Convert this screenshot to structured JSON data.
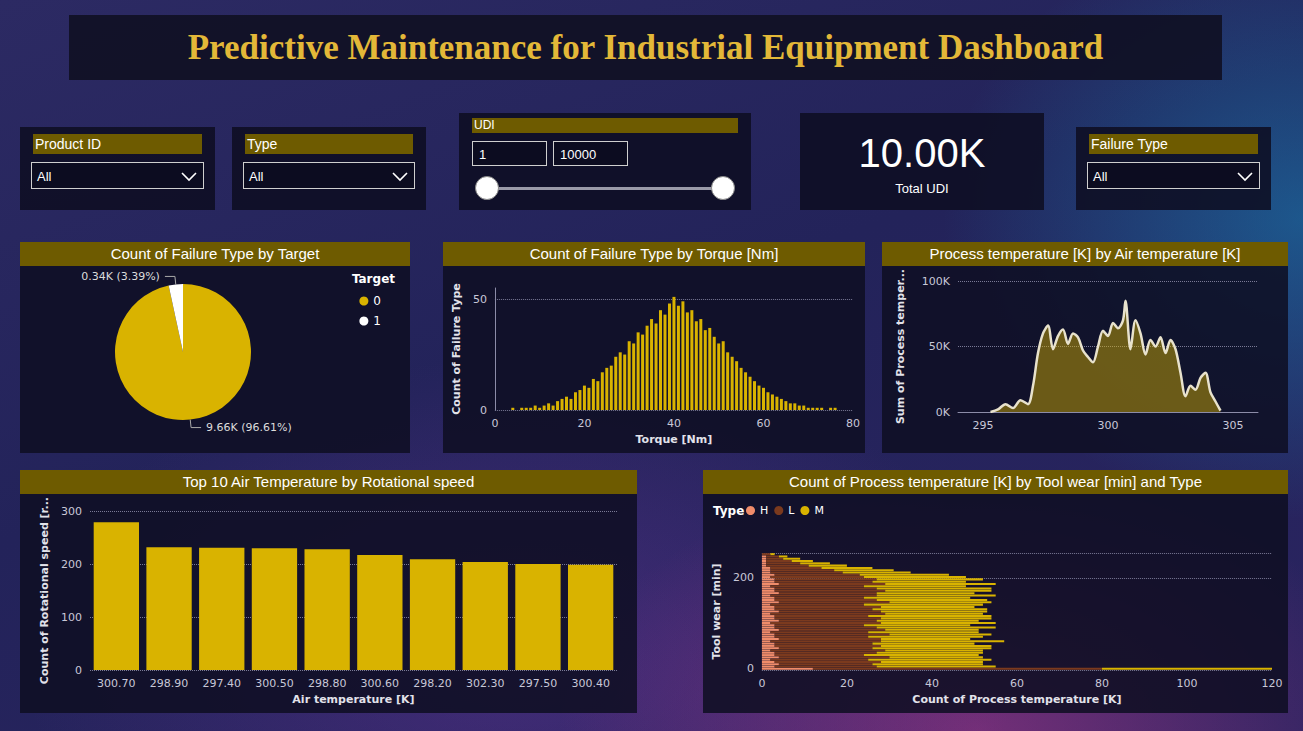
{
  "header": {
    "title": "Predictive Maintenance for Industrial Equipment Dashboard"
  },
  "slicers": [
    {
      "label": "Product ID",
      "value": "All"
    },
    {
      "label": "Type",
      "value": "All"
    },
    {
      "label": "UDI",
      "range": [
        1,
        10000
      ]
    },
    {
      "label": "Failure Type",
      "value": "All"
    }
  ],
  "kpi": {
    "value": "10.00K",
    "label": "Total UDI"
  },
  "chart_data": [
    {
      "type": "pie",
      "title": "Count of Failure Type by Target",
      "legend_title": "Target",
      "legend": "top-right",
      "categories": [
        0,
        1
      ],
      "values": [
        9661,
        339
      ],
      "value_labels": [
        "9.66K (96.61%)",
        "0.34K (3.39%)"
      ],
      "colors": [
        "#d9b300",
        "#ffffff"
      ],
      "data_labels": true
    },
    {
      "type": "bar",
      "title": "Count of Failure Type by Torque [Nm]",
      "xlabel": "Torque [Nm]",
      "ylabel": "Count of Failure Type",
      "x": [
        4,
        5,
        6,
        7,
        8,
        9,
        10,
        11,
        12,
        13,
        14,
        15,
        16,
        17,
        18,
        19,
        20,
        21,
        22,
        23,
        24,
        25,
        26,
        27,
        28,
        29,
        30,
        31,
        32,
        33,
        34,
        35,
        36,
        37,
        38,
        39,
        40,
        41,
        42,
        43,
        44,
        45,
        46,
        47,
        48,
        49,
        50,
        51,
        52,
        53,
        54,
        55,
        56,
        57,
        58,
        59,
        60,
        61,
        62,
        63,
        64,
        65,
        66,
        67,
        68,
        69,
        70,
        71,
        72,
        73,
        74,
        75,
        76
      ],
      "values": [
        1,
        0,
        1,
        1,
        1,
        2,
        1,
        2,
        3,
        2,
        4,
        5,
        6,
        5,
        8,
        9,
        11,
        10,
        14,
        13,
        17,
        19,
        20,
        24,
        26,
        25,
        31,
        30,
        35,
        34,
        38,
        41,
        39,
        45,
        43,
        48,
        51,
        47,
        49,
        44,
        45,
        40,
        41,
        36,
        37,
        33,
        30,
        31,
        26,
        24,
        22,
        19,
        17,
        15,
        13,
        11,
        10,
        8,
        7,
        6,
        5,
        4,
        3,
        3,
        2,
        2,
        1,
        1,
        1,
        1,
        0,
        1,
        1
      ],
      "color": "#d9b300",
      "xlim": [
        0,
        80
      ],
      "xticks": [
        0,
        20,
        40,
        60,
        80
      ],
      "ylim": [
        0,
        55
      ],
      "yticks": [
        0,
        50
      ],
      "grid": true
    },
    {
      "type": "area",
      "title": "Process temperature [K] by Air temperature [K]",
      "ylabel": "Sum of Process temper...",
      "x": [
        295.3,
        295.6,
        295.9,
        296.2,
        296.5,
        296.8,
        297.0,
        297.2,
        297.4,
        297.6,
        297.8,
        298.0,
        298.2,
        298.4,
        298.6,
        298.8,
        299.0,
        299.2,
        299.4,
        299.6,
        299.8,
        300.0,
        300.2,
        300.4,
        300.6,
        300.7,
        300.9,
        301.1,
        301.3,
        301.5,
        301.7,
        301.9,
        302.1,
        302.3,
        302.5,
        302.7,
        302.9,
        303.1,
        303.3,
        303.5,
        303.7,
        303.9,
        304.1,
        304.3,
        304.5
      ],
      "values": [
        0,
        2000,
        6000,
        3000,
        9000,
        6000,
        20000,
        45000,
        60000,
        66000,
        48000,
        58000,
        63000,
        52000,
        60000,
        57000,
        47000,
        42000,
        38000,
        50000,
        62000,
        58000,
        68000,
        64000,
        70000,
        85000,
        48000,
        70000,
        60000,
        44000,
        55000,
        50000,
        57000,
        45000,
        55000,
        48000,
        30000,
        12000,
        20000,
        17000,
        26000,
        30000,
        15000,
        8000,
        1000
      ],
      "color": "#d9b300",
      "xlim": [
        294,
        306
      ],
      "xticks": [
        295,
        300,
        305
      ],
      "ylim": [
        0,
        100000
      ],
      "yticks": [
        {
          "value": 0,
          "label": "0K"
        },
        {
          "value": 50000,
          "label": "50K"
        },
        {
          "value": 100000,
          "label": "100K"
        }
      ],
      "grid": true
    },
    {
      "type": "bar",
      "title": "Top 10 Air Temperature by Rotational speed",
      "xlabel": "Air temperature [K]",
      "ylabel": "Count of Rotational speed [r...",
      "categories": [
        "300.70",
        "298.90",
        "297.40",
        "300.50",
        "298.80",
        "300.60",
        "298.20",
        "302.30",
        "297.50",
        "300.40"
      ],
      "values": [
        279,
        232,
        231,
        230,
        228,
        217,
        209,
        204,
        200,
        199
      ],
      "color": "#d9b300",
      "ylim": [
        0,
        300
      ],
      "yticks": [
        0,
        100,
        200,
        300
      ],
      "grid": true
    },
    {
      "type": "bar",
      "orientation": "horizontal",
      "stacked": true,
      "title": "Count of Process temperature [K] by Tool wear [min] and Type",
      "xlabel": "Count of Process temperature [K]",
      "ylabel": "Tool wear [min]",
      "legend_title": "Type",
      "legend": "top-left",
      "categories": [
        0,
        null,
        null,
        null,
        null,
        null,
        null,
        null,
        null,
        null,
        null,
        null,
        null,
        null,
        null,
        null,
        null,
        null,
        null,
        null,
        null,
        null,
        null,
        null,
        null,
        null,
        null,
        null,
        null,
        null,
        null,
        null,
        null,
        null,
        null,
        null,
        null,
        null,
        null,
        null,
        200,
        null,
        null,
        null,
        null,
        null,
        null,
        null,
        null,
        null,
        null
      ],
      "series": [
        {
          "name": "H",
          "color": "#f08c6a",
          "values": [
            12,
            3,
            4,
            3,
            2,
            4,
            3,
            3,
            2,
            4,
            3,
            3,
            2,
            4,
            3,
            3,
            2,
            4,
            3,
            3,
            2,
            4,
            3,
            3,
            2,
            4,
            3,
            3,
            2,
            4,
            3,
            3,
            2,
            4,
            3,
            3,
            2,
            4,
            3,
            3,
            2,
            3,
            2,
            2,
            2,
            1,
            1,
            1,
            1,
            1,
            0
          ]
        },
        {
          "name": "L",
          "color": "#7b3a1e",
          "values": [
            68,
            24,
            22,
            25,
            23,
            26,
            21,
            24,
            27,
            22,
            25,
            23,
            26,
            24,
            22,
            27,
            23,
            25,
            24,
            21,
            26,
            23,
            25,
            22,
            27,
            24,
            23,
            25,
            22,
            26,
            24,
            21,
            25,
            23,
            26,
            24,
            22,
            25,
            23,
            24,
            22,
            20,
            17,
            15,
            12,
            10,
            8,
            6,
            4,
            3,
            2
          ]
        },
        {
          "name": "M",
          "color": "#d9b300",
          "values": [
            40,
            28,
            26,
            24,
            29,
            22,
            27,
            25,
            23,
            28,
            26,
            24,
            29,
            21,
            27,
            24,
            26,
            22,
            28,
            25,
            27,
            24,
            26,
            29,
            23,
            25,
            27,
            22,
            28,
            24,
            26,
            25,
            28,
            23,
            25,
            27,
            24,
            26,
            22,
            25,
            24,
            21,
            16,
            14,
            12,
            9,
            7,
            5,
            4,
            2,
            1
          ]
        }
      ],
      "xlim": [
        0,
        120
      ],
      "xticks": [
        0,
        20,
        40,
        60,
        80,
        100,
        120
      ],
      "grid": true
    }
  ]
}
